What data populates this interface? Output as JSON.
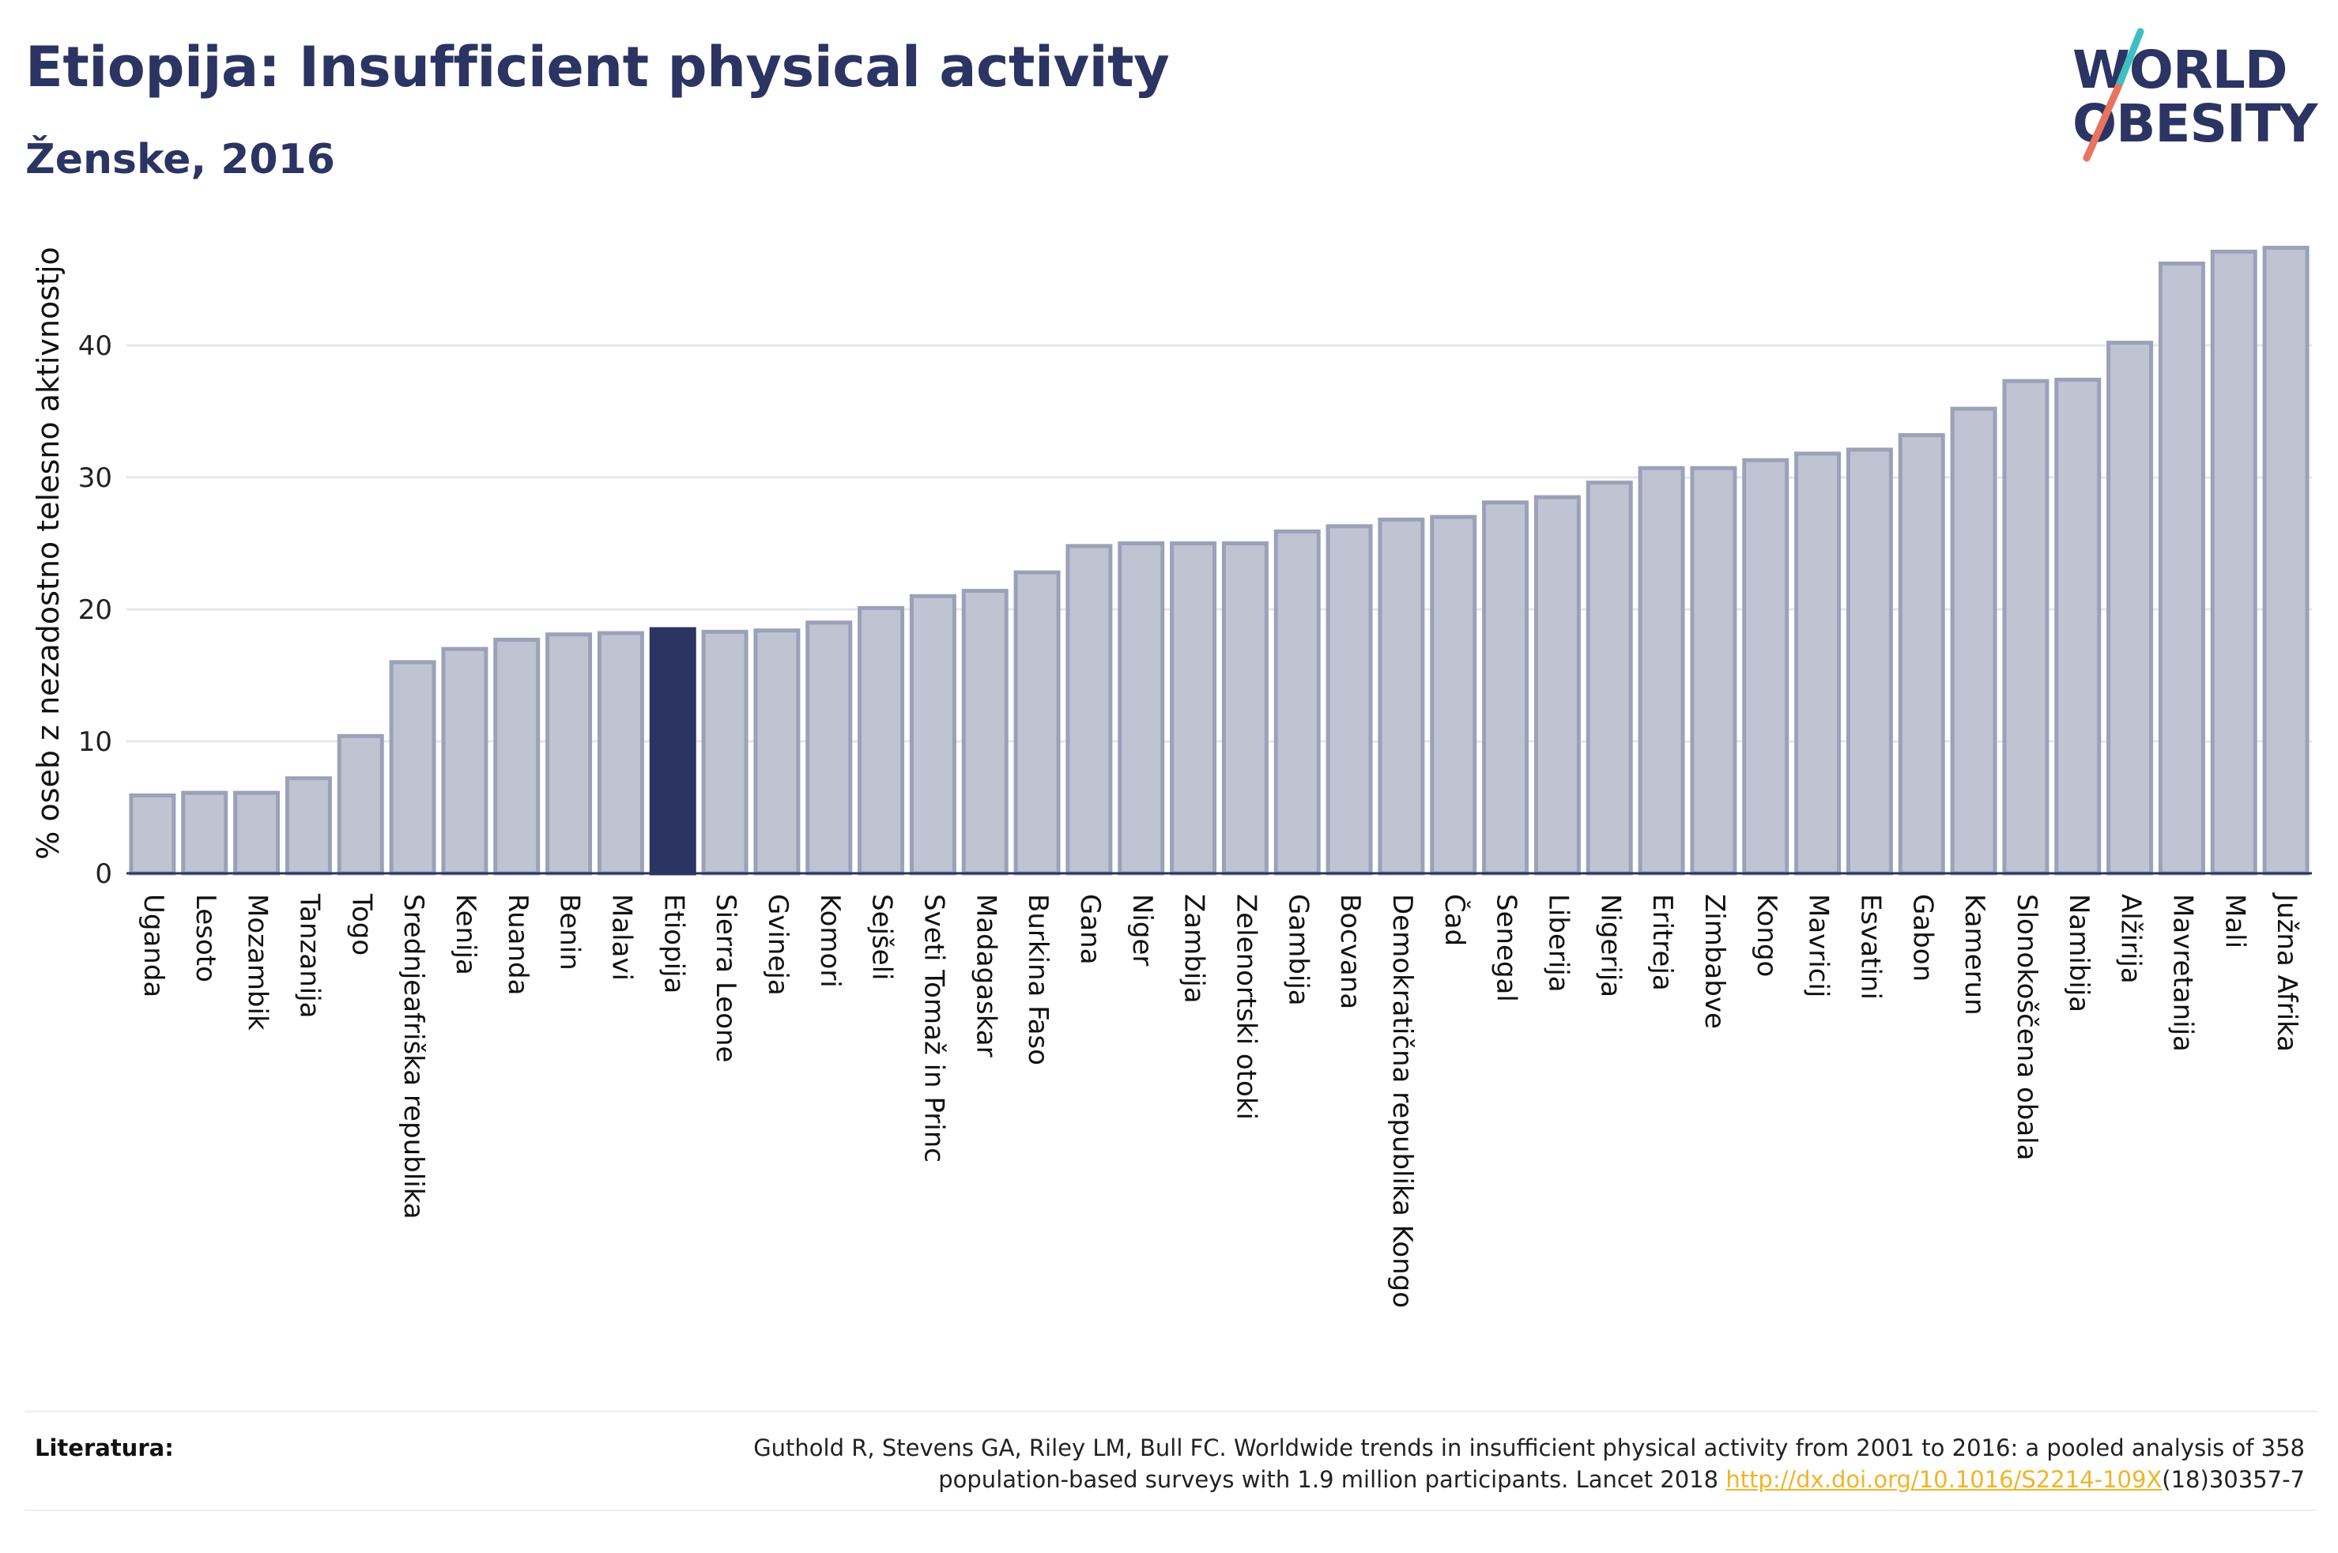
{
  "header": {
    "title": "Etiopija: Insufficient physical activity",
    "subtitle": "Ženske, 2016"
  },
  "logo": {
    "line1": "WORLD",
    "line2": "OBESITY",
    "colors": {
      "text": "#2b3462",
      "slash_top": "#3cc0c0",
      "slash_bottom": "#e8735f"
    }
  },
  "chart_data": {
    "type": "bar",
    "title": "Etiopija: Insufficient physical activity",
    "subtitle": "Ženske, 2016",
    "ylabel": "% oseb z nezadostno telesno aktivnostjo",
    "xlabel": "",
    "ylim": [
      0,
      50
    ],
    "yticks": [
      0,
      10,
      20,
      30,
      40
    ],
    "grid": true,
    "highlight": "Etiopija",
    "colors": {
      "bar": "#bfc3d2",
      "bar_edge": "#9ba1b8",
      "highlight": "#2b3462",
      "grid": "#e6e7ec",
      "axis": "#2b3462"
    },
    "categories": [
      "Uganda",
      "Lesoto",
      "Mozambik",
      "Tanzanija",
      "Togo",
      "Srednjeafriška republika",
      "Kenija",
      "Ruanda",
      "Benin",
      "Malavi",
      "Etiopija",
      "Sierra Leone",
      "Gvineja",
      "Komori",
      "Sejšeli",
      "Sveti Tomaž in Princ",
      "Madagaskar",
      "Burkina Faso",
      "Gana",
      "Niger",
      "Zambija",
      "Zelenortski otoki",
      "Gambija",
      "Bocvana",
      "Demokratična republika Kongo",
      "Čad",
      "Senegal",
      "Liberija",
      "Nigerija",
      "Eritreja",
      "Zimbabve",
      "Kongo",
      "Mavricij",
      "Esvatini",
      "Gabon",
      "Kamerun",
      "Slonokoščena obala",
      "Namibija",
      "Alžirija",
      "Mavretanija",
      "Mali",
      "Južna Afrika"
    ],
    "values": [
      5.9,
      6.1,
      6.1,
      7.2,
      10.4,
      16.0,
      17.0,
      17.7,
      18.1,
      18.2,
      18.5,
      18.3,
      18.4,
      19.0,
      20.1,
      21.0,
      21.4,
      22.8,
      24.8,
      25.0,
      25.0,
      25.0,
      25.9,
      26.3,
      26.8,
      27.0,
      28.1,
      28.5,
      29.6,
      30.7,
      30.7,
      31.3,
      31.8,
      32.1,
      33.2,
      35.2,
      37.3,
      37.4,
      40.2,
      46.2,
      47.1,
      47.4
    ]
  },
  "footer": {
    "ref_label": "Literatura:",
    "ref_line1": "Guthold R, Stevens GA, Riley LM, Bull FC. Worldwide trends in insufficient physical activity from 2001 to 2016: a pooled analysis of 358",
    "ref_line2_pre": "population-based surveys with 1.9 million participants. Lancet 2018 ",
    "ref_link": "http://dx.doi.org/10.1016/S2214-109X",
    "ref_line2_post": "(18)30357-7"
  }
}
